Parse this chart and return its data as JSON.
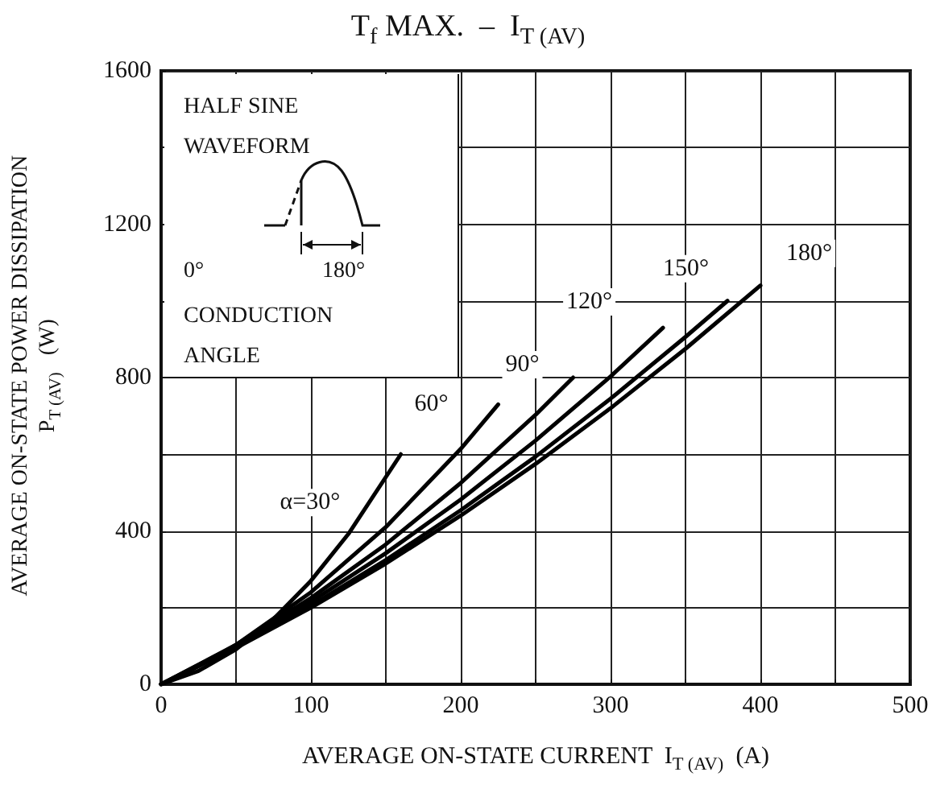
{
  "chart_data": {
    "type": "line",
    "title": "T$_{f}$ MAX.  –  I$_{T (AV)}$",
    "xlabel": "AVERAGE ON-STATE CURRENT  I$_{T (AV)}$  (A)",
    "ylabel": "AVERAGE ON-STATE POWER DISSIPATION\nP$_{T (AV)}$   (W)",
    "annotations": [
      "HALF SINE\nWAVEFORM",
      "0°",
      "180°",
      "CONDUCTION\nANGLE"
    ],
    "xlim": [
      0,
      500
    ],
    "ylim": [
      0,
      1600
    ],
    "xticks": [
      0,
      {
        "value": 50,
        "label": null
      },
      100,
      {
        "value": 150,
        "label": null
      },
      200,
      {
        "value": 250,
        "label": null
      },
      300,
      {
        "value": 350,
        "label": null
      },
      400,
      {
        "value": 450,
        "label": null
      },
      500
    ],
    "yticks": [
      0,
      {
        "value": 200,
        "label": null
      },
      400,
      {
        "value": 600,
        "label": null
      },
      800,
      {
        "value": 1000,
        "label": null
      },
      1200,
      {
        "value": 1400,
        "label": null
      },
      1600
    ],
    "grid": true,
    "legend": false,
    "series": [
      {
        "name": "α=30°",
        "color": "#000000",
        "x": [
          0,
          25,
          50,
          75,
          100,
          125,
          160
        ],
        "values": [
          0,
          35,
          91,
          170,
          270,
          392,
          600
        ]
      },
      {
        "name": "60°",
        "color": "#000000",
        "x": [
          0,
          25,
          50,
          100,
          150,
          200,
          225
        ],
        "values": [
          0,
          47,
          103,
          240,
          410,
          614,
          730
        ]
      },
      {
        "name": "90°",
        "color": "#000000",
        "x": [
          0,
          50,
          100,
          150,
          200,
          250,
          275
        ],
        "values": [
          0,
          103,
          225,
          365,
          525,
          703,
          800
        ]
      },
      {
        "name": "120°",
        "color": "#000000",
        "x": [
          0,
          50,
          100,
          150,
          200,
          250,
          300,
          335
        ],
        "values": [
          0,
          101,
          215,
          342,
          482,
          636,
          803,
          930
        ]
      },
      {
        "name": "150°",
        "color": "#000000",
        "x": [
          0,
          50,
          100,
          150,
          200,
          250,
          300,
          350,
          378
        ],
        "values": [
          0,
          97,
          205,
          324,
          454,
          594,
          745,
          906,
          1000
        ]
      },
      {
        "name": "180°",
        "color": "#000000",
        "x": [
          0,
          50,
          100,
          150,
          200,
          250,
          300,
          350,
          400
        ],
        "values": [
          0,
          95,
          200,
          315,
          440,
          575,
          720,
          875,
          1040
        ]
      }
    ]
  }
}
